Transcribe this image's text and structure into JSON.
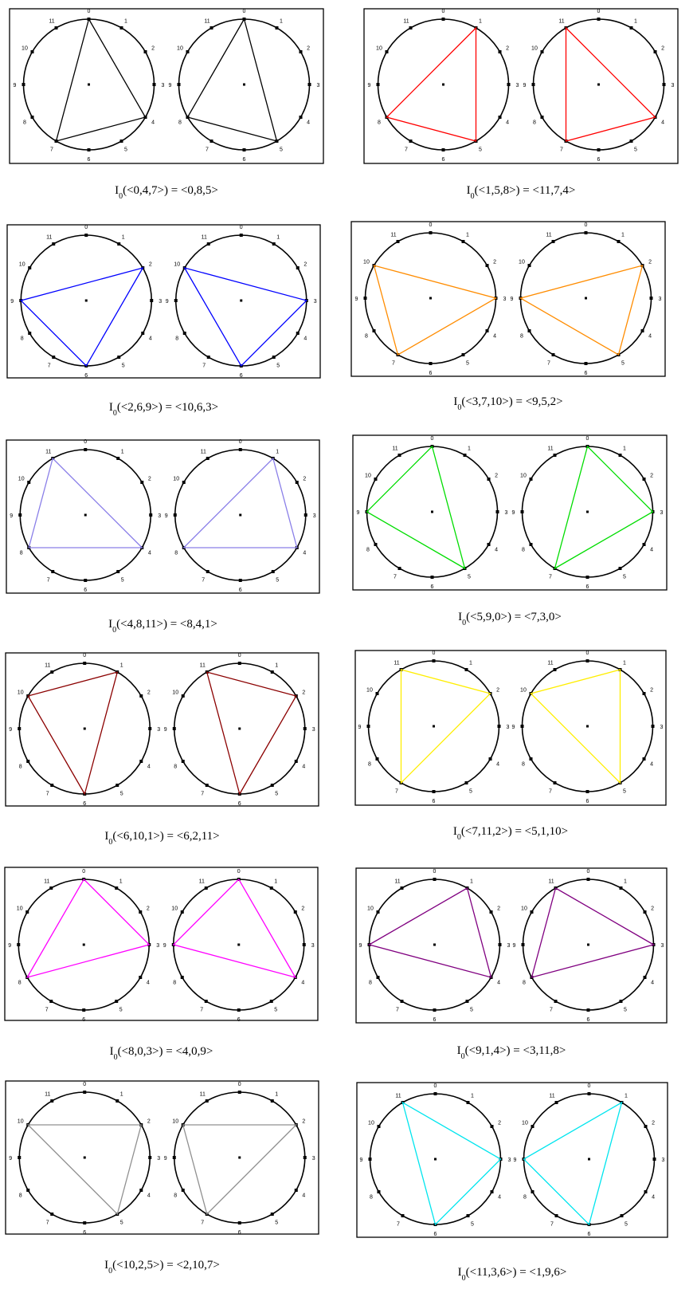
{
  "captions": [
    {
      "sub": "0",
      "text": "(<0,4,7>) = <0,8,5>"
    },
    {
      "sub": "0",
      "text": "(<1,5,8>) = <11,7,4>"
    },
    {
      "sub": "0",
      "text": "(<2,6,9>) = <10,6,3>"
    },
    {
      "sub": "0",
      "text": "(<3,7,10>) = <9,5,2>"
    },
    {
      "sub": "0",
      "text": "(<4,8,11>) = <8,4,1>"
    },
    {
      "sub": "0",
      "text": "(<5,9,0>) = <7,3,0>"
    },
    {
      "sub": "0",
      "text": "(<6,10,1>) = <6,2,11>"
    },
    {
      "sub": "0",
      "text": "(<7,11,2>) = <5,1,10>"
    },
    {
      "sub": "0",
      "text": "(<8,0,3>) = <4,0,9>"
    },
    {
      "sub": "0",
      "text": "(<9,1,4>) = <3,11,8>"
    },
    {
      "sub": "0",
      "text": "(<10,2,5>) = <2,10,7>"
    },
    {
      "sub": "0",
      "text": "(<11,3,6>) = <1,9,6>"
    }
  ],
  "caption_prefix": "I",
  "diagrams": [
    {
      "color": "#000000",
      "left": [
        0,
        4,
        7
      ],
      "right": [
        0,
        8,
        5
      ]
    },
    {
      "color": "#ff0000",
      "left": [
        1,
        5,
        8
      ],
      "right": [
        11,
        7,
        4
      ]
    },
    {
      "color": "#0000ff",
      "left": [
        2,
        6,
        9
      ],
      "right": [
        10,
        6,
        3
      ]
    },
    {
      "color": "#ff8c00",
      "left": [
        3,
        7,
        10
      ],
      "right": [
        9,
        5,
        2
      ]
    },
    {
      "color": "#8a7fe8",
      "left": [
        4,
        8,
        11
      ],
      "right": [
        8,
        4,
        1
      ]
    },
    {
      "color": "#00dd00",
      "left": [
        5,
        9,
        0
      ],
      "right": [
        7,
        3,
        0
      ]
    },
    {
      "color": "#8b0000",
      "left": [
        6,
        10,
        1
      ],
      "right": [
        6,
        2,
        11
      ]
    },
    {
      "color": "#ffee00",
      "left": [
        7,
        11,
        2
      ],
      "right": [
        5,
        1,
        10
      ]
    },
    {
      "color": "#ff00ff",
      "left": [
        8,
        0,
        3
      ],
      "right": [
        4,
        0,
        9
      ]
    },
    {
      "color": "#800080",
      "left": [
        9,
        1,
        4
      ],
      "right": [
        3,
        11,
        8
      ]
    },
    {
      "color": "#909090",
      "left": [
        10,
        2,
        5
      ],
      "right": [
        2,
        10,
        7
      ]
    },
    {
      "color": "#00e5ee",
      "left": [
        11,
        3,
        6
      ],
      "right": [
        1,
        9,
        6
      ]
    }
  ],
  "clock_labels": [
    "0",
    "1",
    "2",
    "3",
    "4",
    "5",
    "6",
    "7",
    "8",
    "9",
    "10",
    "11"
  ]
}
